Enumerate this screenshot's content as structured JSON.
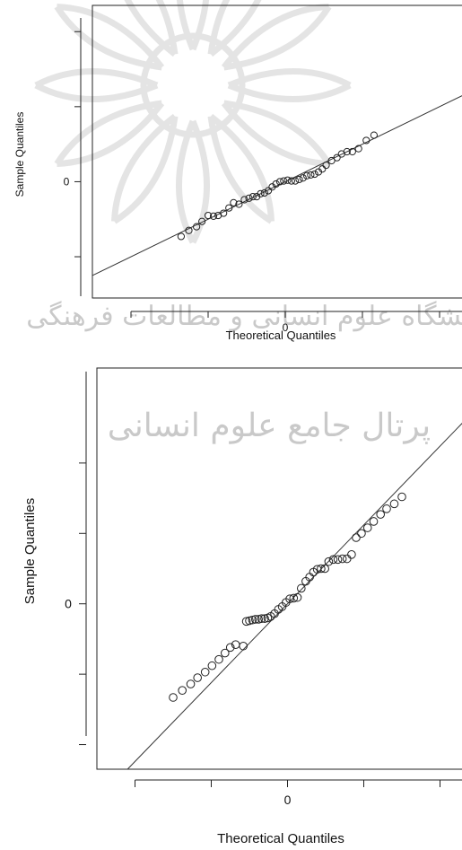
{
  "watermark": {
    "text_line1": "پژوهشگاه علوم انسانی و مطالعات فرهنگی",
    "text_line2": "پرتال جامع علوم انسانی",
    "color": "#cfcfcf"
  },
  "chart_data": [
    {
      "type": "scatter",
      "title": "",
      "xlabel": "Theoretical Quantiles",
      "ylabel": "Sample Quantiles",
      "xlim": [
        -2.5,
        2.5
      ],
      "ylim": [
        -1.55,
        2.35
      ],
      "x_tick_values": [
        -2,
        -1,
        0,
        1,
        2
      ],
      "x_tick_labels": [
        "",
        "",
        "0",
        "",
        ""
      ],
      "y_tick_values": [
        -1,
        0,
        1,
        2
      ],
      "y_tick_labels": [
        "",
        "0",
        "",
        ""
      ],
      "reference_line": {
        "slope": 0.5,
        "intercept": 0.0
      },
      "series": [
        {
          "marker": "open-circle",
          "x": [
            -1.35,
            -1.25,
            -1.15,
            -1.08,
            -1.0,
            -0.93,
            -0.87,
            -0.8,
            -0.73,
            -0.67,
            -0.6,
            -0.53,
            -0.47,
            -0.42,
            -0.37,
            -0.32,
            -0.27,
            -0.22,
            -0.17,
            -0.12,
            -0.07,
            -0.02,
            0.03,
            0.08,
            0.13,
            0.18,
            0.23,
            0.28,
            0.33,
            0.38,
            0.43,
            0.48,
            0.53,
            0.6,
            0.67,
            0.73,
            0.8,
            0.87,
            0.95,
            1.05,
            1.15
          ],
          "y": [
            -0.73,
            -0.65,
            -0.6,
            -0.53,
            -0.45,
            -0.46,
            -0.45,
            -0.42,
            -0.35,
            -0.28,
            -0.3,
            -0.24,
            -0.22,
            -0.2,
            -0.2,
            -0.16,
            -0.15,
            -0.12,
            -0.07,
            -0.03,
            0.0,
            0.01,
            0.02,
            0.01,
            0.01,
            0.03,
            0.05,
            0.08,
            0.09,
            0.1,
            0.13,
            0.17,
            0.22,
            0.28,
            0.32,
            0.37,
            0.4,
            0.4,
            0.44,
            0.55,
            0.62
          ]
        }
      ]
    },
    {
      "type": "scatter",
      "title": "",
      "xlabel": "Theoretical Quantiles",
      "ylabel": "Sample Quantiles",
      "xlim": [
        -2.5,
        2.5
      ],
      "ylim": [
        -2.35,
        3.35
      ],
      "x_tick_values": [
        -2,
        -1,
        0,
        1,
        2
      ],
      "x_tick_labels": [
        "",
        "",
        "0",
        "",
        ""
      ],
      "y_tick_values": [
        -2,
        -1,
        0,
        1,
        2
      ],
      "y_tick_labels": [
        "",
        "",
        "0",
        "",
        ""
      ],
      "reference_line": {
        "slope": 1.12,
        "intercept": 0.0
      },
      "series": [
        {
          "marker": "open-circle",
          "x": [
            -1.5,
            -1.38,
            -1.27,
            -1.18,
            -1.08,
            -0.99,
            -0.9,
            -0.82,
            -0.75,
            -0.68,
            -0.58,
            -0.54,
            -0.5,
            -0.46,
            -0.42,
            -0.38,
            -0.34,
            -0.3,
            -0.26,
            -0.22,
            -0.17,
            -0.12,
            -0.07,
            -0.02,
            0.03,
            0.08,
            0.13,
            0.18,
            0.24,
            0.29,
            0.34,
            0.39,
            0.44,
            0.49,
            0.54,
            0.6,
            0.66,
            0.72,
            0.78,
            0.84,
            0.9,
            0.97,
            1.05,
            1.13,
            1.22,
            1.3,
            1.4,
            1.5
          ],
          "y": [
            -1.33,
            -1.23,
            -1.14,
            -1.05,
            -0.97,
            -0.88,
            -0.79,
            -0.7,
            -0.62,
            -0.58,
            -0.6,
            -0.25,
            -0.24,
            -0.23,
            -0.22,
            -0.22,
            -0.21,
            -0.21,
            -0.2,
            -0.18,
            -0.14,
            -0.08,
            -0.04,
            0.02,
            0.07,
            0.08,
            0.09,
            0.22,
            0.32,
            0.38,
            0.45,
            0.49,
            0.5,
            0.5,
            0.6,
            0.63,
            0.63,
            0.64,
            0.64,
            0.7,
            0.94,
            1.0,
            1.08,
            1.17,
            1.27,
            1.35,
            1.42,
            1.52
          ]
        }
      ]
    }
  ]
}
